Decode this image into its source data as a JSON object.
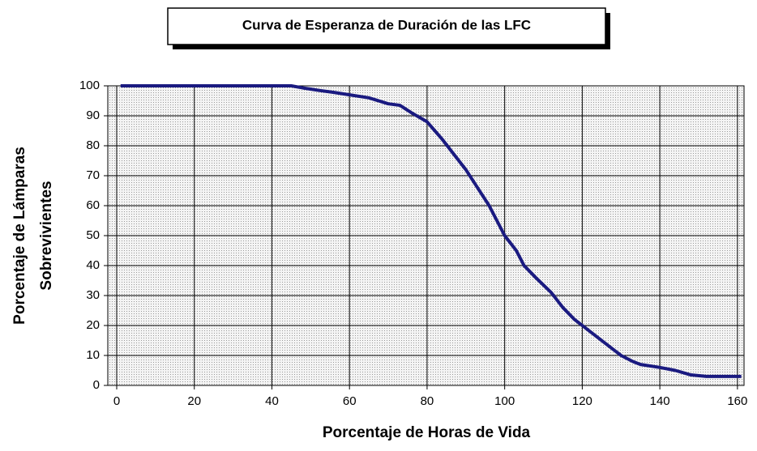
{
  "chart_data": {
    "type": "line",
    "title": "Curva de Esperanza de Duración de las LFC",
    "x_label": "Porcentaje de Horas de Vida",
    "y_label": [
      "Porcentaje de Lámparas",
      "Sobrevivientes"
    ],
    "x": [
      1,
      10,
      20,
      30,
      40,
      45,
      48,
      52,
      56,
      60,
      65,
      70,
      73,
      76,
      80,
      84,
      87,
      90,
      93,
      96,
      98,
      100,
      103,
      105,
      108,
      112,
      115,
      118,
      121,
      124,
      127,
      130,
      133,
      135,
      140,
      144,
      148,
      152,
      156,
      161
    ],
    "values": [
      100,
      100,
      100,
      100,
      100,
      100,
      99.3,
      98.5,
      97.8,
      97,
      96,
      94,
      93.5,
      91,
      88,
      82,
      77,
      72,
      66,
      60,
      55,
      50,
      45,
      40,
      36,
      31,
      26,
      22,
      19,
      16,
      13,
      10,
      8,
      7,
      6,
      5,
      3.5,
      3,
      3,
      3
    ],
    "color": "#1a1a80",
    "xlim": [
      -2.3,
      161.7
    ],
    "xticks": [
      0,
      20,
      40,
      60,
      80,
      100,
      120,
      140,
      160
    ],
    "ylim": [
      0,
      100
    ],
    "yticks": [
      0,
      10,
      20,
      30,
      40,
      50,
      60,
      70,
      80,
      90,
      100
    ],
    "grid": true
  }
}
